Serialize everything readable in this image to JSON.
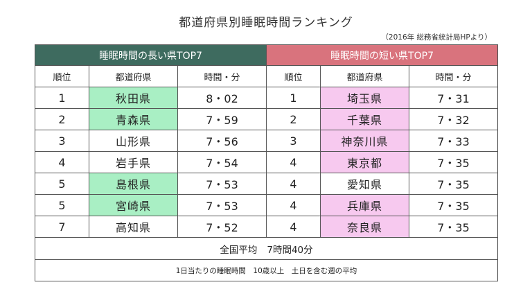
{
  "title": "都道府県別睡眠時間ランキング",
  "source": "（2016年 総務省統計局HPより）",
  "long_header": "睡眠時間の長い県TOP7",
  "short_header": "睡眠時間の短い県TOP7",
  "columns": {
    "rank": "順位",
    "prefecture": "都道府県",
    "time": "時間・分"
  },
  "long_rows": [
    {
      "rank": "1",
      "prefecture": "秋田県",
      "time": "8・02",
      "highlight": true
    },
    {
      "rank": "2",
      "prefecture": "青森県",
      "time": "7・59",
      "highlight": true
    },
    {
      "rank": "3",
      "prefecture": "山形県",
      "time": "7・56",
      "highlight": false
    },
    {
      "rank": "4",
      "prefecture": "岩手県",
      "time": "7・54",
      "highlight": false
    },
    {
      "rank": "5",
      "prefecture": "島根県",
      "time": "7・53",
      "highlight": true
    },
    {
      "rank": "5",
      "prefecture": "宮崎県",
      "time": "7・53",
      "highlight": true
    },
    {
      "rank": "7",
      "prefecture": "高知県",
      "time": "7・52",
      "highlight": false
    }
  ],
  "short_rows": [
    {
      "rank": "1",
      "prefecture": "埼玉県",
      "time": "7・31",
      "highlight": true
    },
    {
      "rank": "2",
      "prefecture": "千葉県",
      "time": "7・32",
      "highlight": true
    },
    {
      "rank": "3",
      "prefecture": "神奈川県",
      "time": "7・33",
      "highlight": true
    },
    {
      "rank": "4",
      "prefecture": "東京都",
      "time": "7・35",
      "highlight": true
    },
    {
      "rank": "4",
      "prefecture": "愛知県",
      "time": "7・35",
      "highlight": false
    },
    {
      "rank": "4",
      "prefecture": "兵庫県",
      "time": "7・35",
      "highlight": true
    },
    {
      "rank": "4",
      "prefecture": "奈良県",
      "time": "7・35",
      "highlight": true
    }
  ],
  "average": {
    "label": "全国平均",
    "value": "7時間40分"
  },
  "note": "1日当たりの睡眠時間　10歳以上　土日を含む週の平均",
  "colors": {
    "long_header": "#3e6b5f",
    "short_header": "#d9737d",
    "long_highlight": "#a9efc4",
    "short_highlight": "#f7c9ef"
  }
}
